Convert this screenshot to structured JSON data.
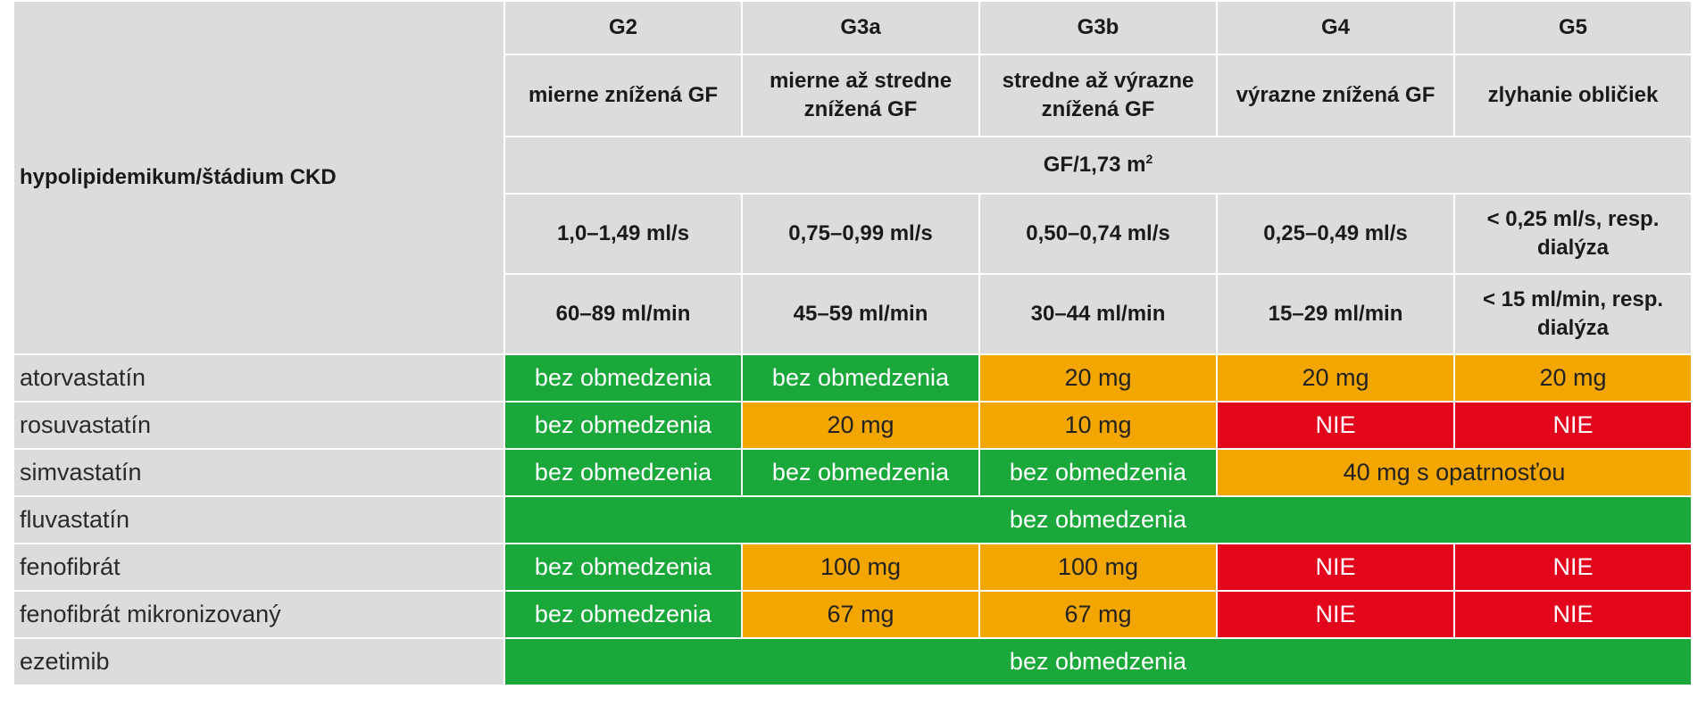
{
  "colors": {
    "header_bg": "#dcdcdc",
    "green": "#1aa83a",
    "orange": "#f4a600",
    "red": "#e3051b"
  },
  "header": {
    "corner": "hypolipidemikum/štádium CKD",
    "stages": [
      "G2",
      "G3a",
      "G3b",
      "G4",
      "G5"
    ],
    "descriptions": [
      "mierne znížená GF",
      "mierne až stredne znížená GF",
      "stredne až výrazne znížená GF",
      "výrazne znížená GF",
      "zlyhanie obličiek"
    ],
    "unit": {
      "base": "GF/1,73 m",
      "sup": "2"
    },
    "ml_s": [
      "1,0–1,49 ml/s",
      "0,75–0,99 ml/s",
      "0,50–0,74 ml/s",
      "0,25–0,49 ml/s",
      "< 0,25 ml/s, resp. dialýza"
    ],
    "ml_min": [
      "60–89 ml/min",
      "45–59 ml/min",
      "30–44 ml/min",
      "15–29 ml/min",
      "< 15 ml/min, resp. dialýza"
    ]
  },
  "rows": [
    {
      "drug": "atorvastatín",
      "cells": [
        {
          "text": "bez obmedzenia",
          "status": "green"
        },
        {
          "text": "bez obmedzenia",
          "status": "green"
        },
        {
          "text": "20 mg",
          "status": "orange"
        },
        {
          "text": "20 mg",
          "status": "orange"
        },
        {
          "text": "20 mg",
          "status": "orange"
        }
      ]
    },
    {
      "drug": "rosuvastatín",
      "cells": [
        {
          "text": "bez obmedzenia",
          "status": "green"
        },
        {
          "text": "20 mg",
          "status": "orange"
        },
        {
          "text": "10 mg",
          "status": "orange"
        },
        {
          "text": "NIE",
          "status": "red"
        },
        {
          "text": "NIE",
          "status": "red"
        }
      ]
    },
    {
      "drug": "simvastatín",
      "cells": [
        {
          "text": "bez obmedzenia",
          "status": "green"
        },
        {
          "text": "bez obmedzenia",
          "status": "green"
        },
        {
          "text": "bez obmedzenia",
          "status": "green"
        },
        {
          "text": "40 mg s opatrnosťou",
          "status": "orange",
          "span": 2
        }
      ]
    },
    {
      "drug": "fluvastatín",
      "cells": [
        {
          "text": "bez obmedzenia",
          "status": "green",
          "span": 5
        }
      ]
    },
    {
      "drug": "fenofibrát",
      "cells": [
        {
          "text": "bez obmedzenia",
          "status": "green"
        },
        {
          "text": "100 mg",
          "status": "orange"
        },
        {
          "text": "100 mg",
          "status": "orange"
        },
        {
          "text": "NIE",
          "status": "red"
        },
        {
          "text": "NIE",
          "status": "red"
        }
      ]
    },
    {
      "drug": "fenofibrát mikronizovaný",
      "cells": [
        {
          "text": "bez obmedzenia",
          "status": "green"
        },
        {
          "text": "67 mg",
          "status": "orange"
        },
        {
          "text": "67 mg",
          "status": "orange"
        },
        {
          "text": "NIE",
          "status": "red"
        },
        {
          "text": "NIE",
          "status": "red"
        }
      ]
    },
    {
      "drug": "ezetimib",
      "cells": [
        {
          "text": "bez obmedzenia",
          "status": "green",
          "span": 5
        }
      ]
    }
  ]
}
